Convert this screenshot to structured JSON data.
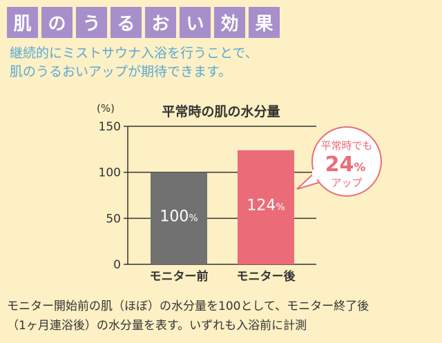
{
  "heading": {
    "chars": [
      "肌",
      "の",
      "う",
      "る",
      "お",
      "い",
      "効",
      "果"
    ],
    "box_color": "#a68fcb"
  },
  "subtitle": {
    "line1": "継続的にミストサウナ入浴を行うことで、",
    "line2": "肌のうるおいアップが期待できます。"
  },
  "chart_data": {
    "type": "bar",
    "title": "平常時の肌の水分量",
    "unit_label": "(%)",
    "categories": [
      "モニター前",
      "モニター後"
    ],
    "values": [
      100,
      124
    ],
    "value_labels": [
      {
        "num": "100",
        "pct": "%"
      },
      {
        "num": "124",
        "pct": "%"
      }
    ],
    "colors": [
      "#717171",
      "#ec6b78"
    ],
    "ylim": [
      0,
      150
    ],
    "yticks": [
      "0",
      "50",
      "100",
      "150"
    ],
    "grid": true,
    "callout": {
      "line1": "平常時でも",
      "value": "24",
      "pct": "%",
      "line3": "アップ",
      "color": "#ec6b78"
    }
  },
  "footnote": {
    "line1": "モニター開始前の肌（ほぼ）の水分量を100として、モニター終了後",
    "line2": "（1ヶ月連浴後）の水分量を表す。いずれも入浴前に計測"
  }
}
